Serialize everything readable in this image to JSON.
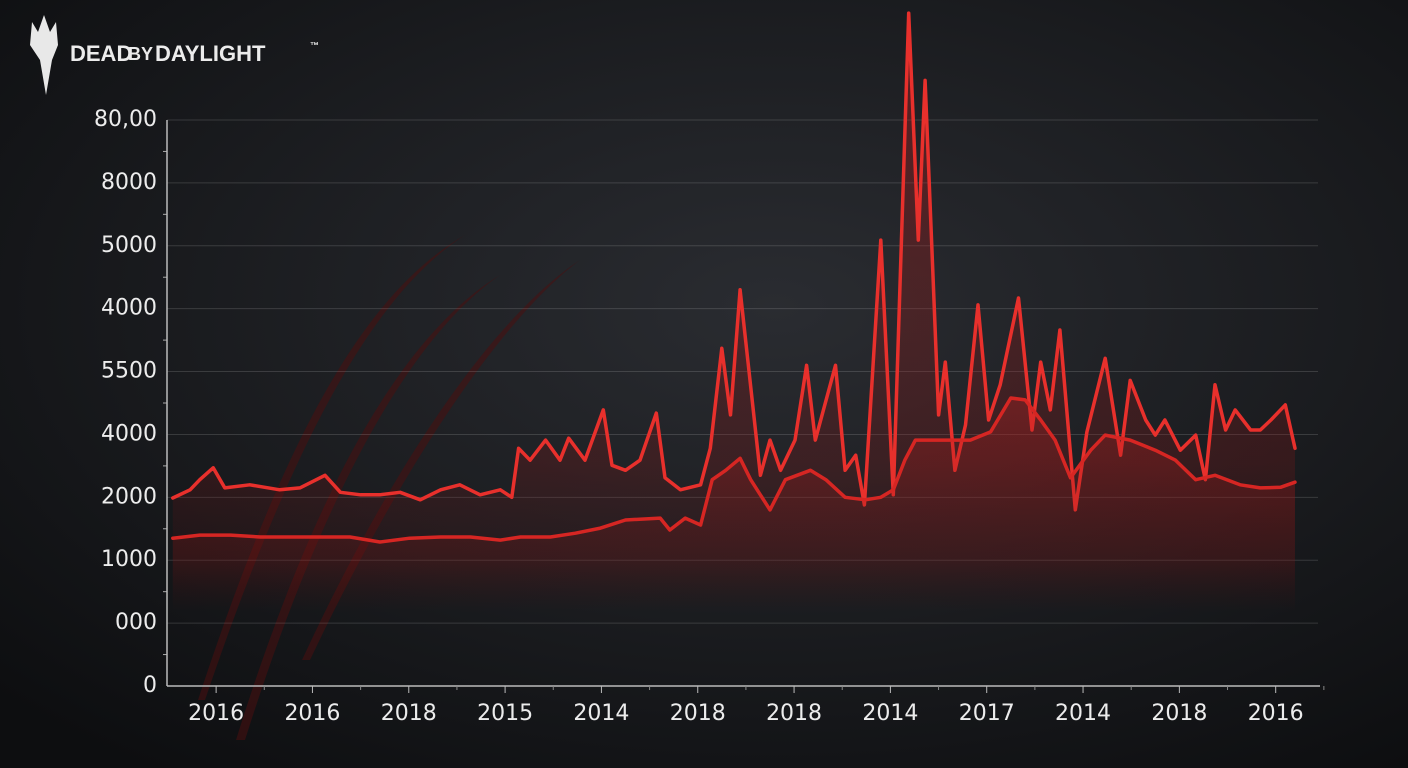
{
  "brand": [
    "DEAD",
    "BY",
    "DAYLIGHT",
    "™"
  ],
  "chart_data": {
    "type": "line",
    "xlim": [
      -0.51,
      11.46
    ],
    "xticks": [
      {
        "value": 0,
        "label": "2016"
      },
      {
        "value": 1,
        "label": "2016"
      },
      {
        "value": 2,
        "label": "2018"
      },
      {
        "value": 3,
        "label": "2015"
      },
      {
        "value": 4,
        "label": "2014"
      },
      {
        "value": 5,
        "label": "2018"
      },
      {
        "value": 6,
        "label": "2018"
      },
      {
        "value": 7,
        "label": "2014"
      },
      {
        "value": 8,
        "label": "2017"
      },
      {
        "value": 9,
        "label": "2014"
      },
      {
        "value": 10,
        "label": "2018"
      },
      {
        "value": 11,
        "label": "2016"
      }
    ],
    "ylim": [
      0,
      9
    ],
    "yticks": [
      0,
      {
        "value": 1,
        "label": "000"
      },
      {
        "value": 2,
        "label": "1000"
      },
      {
        "value": 3,
        "label": "2000"
      },
      {
        "value": 4,
        "label": "4000"
      },
      {
        "value": 5,
        "label": "5500"
      },
      {
        "value": 6,
        "label": "4000"
      },
      {
        "value": 7,
        "label": "5000"
      },
      {
        "value": 8,
        "label": "8000"
      },
      {
        "value": 9,
        "label": "80,00"
      }
    ],
    "grid": true,
    "series": [
      {
        "color": "#e8302c",
        "x": [
          -0.45,
          -0.27,
          -0.17,
          -0.03,
          0.09,
          0.35,
          0.66,
          0.87,
          1.13,
          1.29,
          1.5,
          1.7,
          1.91,
          2.12,
          2.33,
          2.53,
          2.74,
          2.95,
          3.07,
          3.14,
          3.26,
          3.42,
          3.57,
          3.66,
          3.83,
          4.02,
          4.11,
          4.25,
          4.4,
          4.57,
          4.66,
          4.82,
          5.03,
          5.13,
          5.25,
          5.34,
          5.44,
          5.52,
          5.65,
          5.75,
          5.86,
          6.01,
          6.13,
          6.22,
          6.43,
          6.53,
          6.64,
          6.73,
          6.9,
          7.03,
          7.19,
          7.29,
          7.36,
          7.5,
          7.57,
          7.67,
          7.78,
          7.91,
          8.02,
          8.14,
          8.33,
          8.47,
          8.56,
          8.66,
          8.76,
          8.92,
          9.04,
          9.23,
          9.39,
          9.49,
          9.65,
          9.75,
          9.85,
          10.01,
          10.17,
          10.27,
          10.37,
          10.48,
          10.58,
          10.74,
          10.84,
          10.95,
          11.1,
          11.2
        ],
        "values": [
          2.99,
          3.12,
          3.28,
          3.47,
          3.15,
          3.2,
          3.12,
          3.15,
          3.35,
          3.08,
          3.04,
          3.04,
          3.08,
          2.96,
          3.12,
          3.2,
          3.04,
          3.12,
          3.0,
          3.78,
          3.59,
          3.91,
          3.59,
          3.94,
          3.59,
          4.39,
          3.51,
          3.43,
          3.59,
          4.34,
          3.31,
          3.12,
          3.2,
          3.78,
          5.37,
          4.31,
          6.3,
          5.18,
          3.35,
          3.91,
          3.43,
          3.91,
          5.1,
          3.91,
          5.1,
          3.43,
          3.67,
          2.88,
          7.09,
          3.04,
          10.7,
          7.09,
          9.63,
          4.31,
          5.15,
          3.43,
          4.15,
          6.06,
          4.23,
          4.79,
          6.17,
          4.07,
          5.15,
          4.39,
          5.66,
          2.8,
          4.04,
          5.21,
          3.67,
          4.86,
          4.23,
          3.99,
          4.23,
          3.75,
          3.99,
          3.28,
          4.79,
          4.07,
          4.39,
          4.07,
          4.07,
          4.23,
          4.47,
          3.78
        ]
      },
      {
        "color": "#d62623",
        "x": [
          -0.45,
          -0.17,
          0.15,
          0.46,
          0.77,
          1.08,
          1.39,
          1.7,
          2.01,
          2.33,
          2.64,
          2.95,
          3.16,
          3.47,
          3.73,
          3.99,
          4.25,
          4.61,
          4.71,
          4.87,
          5.03,
          5.15,
          5.29,
          5.44,
          5.55,
          5.75,
          5.91,
          6.17,
          6.33,
          6.53,
          6.74,
          6.9,
          7.03,
          7.15,
          7.26,
          7.41,
          7.62,
          7.83,
          8.04,
          8.25,
          8.4,
          8.56,
          8.71,
          8.87,
          9.08,
          9.23,
          9.49,
          9.75,
          9.96,
          10.17,
          10.37,
          10.63,
          10.84,
          11.05,
          11.2
        ],
        "values": [
          2.35,
          2.4,
          2.4,
          2.37,
          2.37,
          2.37,
          2.37,
          2.29,
          2.35,
          2.37,
          2.37,
          2.32,
          2.37,
          2.37,
          2.43,
          2.51,
          2.64,
          2.67,
          2.48,
          2.67,
          2.56,
          3.28,
          3.43,
          3.62,
          3.28,
          2.8,
          3.28,
          3.43,
          3.28,
          3.0,
          2.96,
          3.0,
          3.12,
          3.59,
          3.91,
          3.91,
          3.91,
          3.91,
          4.04,
          4.58,
          4.55,
          4.23,
          3.91,
          3.31,
          3.75,
          3.99,
          3.91,
          3.75,
          3.59,
          3.28,
          3.35,
          3.2,
          3.15,
          3.16,
          3.24
        ]
      }
    ]
  }
}
